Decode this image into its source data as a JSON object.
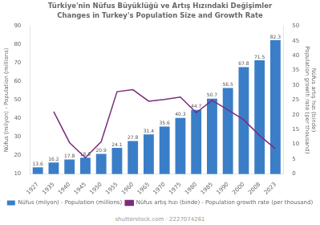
{
  "chart_data": {
    "type": "bar",
    "title": "Türkiye'nin Nüfus Büyüklüğü ve Artış Hızındaki Değişimler",
    "subtitle": "Changes in Turkey's Population Size and Growth Rate",
    "categories": [
      "1927",
      "1935",
      "1940",
      "1945",
      "1950",
      "1955",
      "1960",
      "1965",
      "1970",
      "1975",
      "1980",
      "1985",
      "1990",
      "2000",
      "2008",
      "2023"
    ],
    "series": [
      {
        "name": "Nüfus (milyon) - Population (millions)",
        "type": "bar",
        "color": "#3a7ec8",
        "values": [
          13.6,
          16.2,
          17.8,
          18.8,
          20.9,
          24.1,
          27.8,
          31.4,
          35.6,
          40.3,
          44.7,
          50.7,
          56.5,
          67.8,
          71.5,
          82.3
        ],
        "data_labels": true
      },
      {
        "name": "Nüfus artış hızı (binde) - Population growth rate (per thousand)",
        "type": "line",
        "color": "#7b2d7b",
        "axis": "y2",
        "values": [
          null,
          21.1,
          10.6,
          5.5,
          10.9,
          27.8,
          28.5,
          24.6,
          25.2,
          26.0,
          20.7,
          24.9,
          21.7,
          18.3,
          13.0,
          8.5
        ]
      }
    ],
    "ylabel": "Nüfus (milyon) - Population (millions)",
    "y2label": "Nüfus artış hızı (binde)\nPopulation growth rate (per thousand)",
    "ylim": [
      10,
      90
    ],
    "yticks": [
      10,
      20,
      30,
      40,
      50,
      60,
      70,
      80,
      90
    ],
    "y2lim": [
      0,
      50
    ],
    "y2ticks": [
      0,
      5,
      10,
      15,
      20,
      25,
      30,
      35,
      40,
      45,
      50
    ],
    "grid": false,
    "legend": "bottom",
    "annotations": [
      "shutterstock.com · 2227074261"
    ]
  }
}
